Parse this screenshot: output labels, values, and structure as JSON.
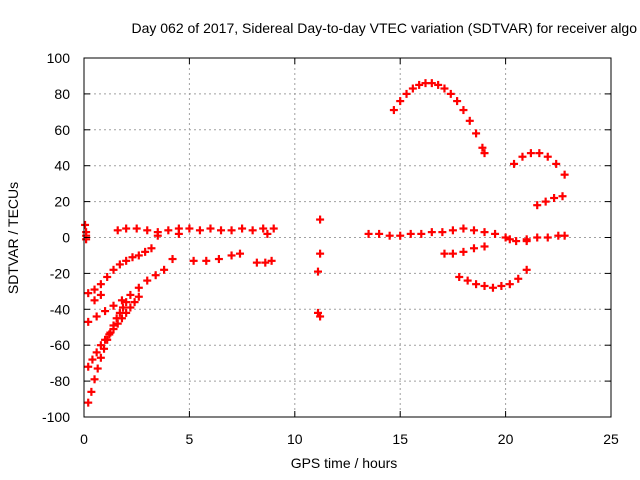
{
  "chart_data": {
    "type": "scatter",
    "title": "Day 062 of 2017, Sidereal Day-to-day VTEC variation (SDTVAR) for receiver algo",
    "xlabel": "GPS time / hours",
    "ylabel": "SDTVAR / TECUs",
    "xlim": [
      0,
      25
    ],
    "ylim": [
      -100,
      100
    ],
    "xticks": [
      "0",
      "5",
      "10",
      "15",
      "20",
      "25"
    ],
    "yticks": [
      "-100",
      "-80",
      "-60",
      "-40",
      "-20",
      "0",
      "20",
      "40",
      "60",
      "80",
      "100"
    ],
    "grid": true,
    "legend": "none",
    "marker": "plus",
    "colors": {
      "points": "#ff0000",
      "axes": "#000000",
      "grid": "#a0a0a0"
    },
    "series": [
      {
        "values": [
          [
            0.05,
            7
          ],
          [
            0.1,
            3
          ],
          [
            0.1,
            1
          ],
          [
            0.1,
            -1
          ],
          [
            0.2,
            -31
          ],
          [
            0.5,
            -29
          ],
          [
            0.8,
            -26
          ],
          [
            1.1,
            -22
          ],
          [
            1.4,
            -18
          ],
          [
            1.7,
            -15
          ],
          [
            2.0,
            -13
          ],
          [
            2.3,
            -11
          ],
          [
            2.6,
            -10
          ],
          [
            2.9,
            -8
          ],
          [
            3.2,
            -6
          ],
          [
            0.2,
            -47
          ],
          [
            0.6,
            -44
          ],
          [
            1.0,
            -41
          ],
          [
            1.4,
            -38
          ],
          [
            1.8,
            -35
          ],
          [
            2.2,
            -32
          ],
          [
            2.6,
            -28
          ],
          [
            3.0,
            -24
          ],
          [
            3.4,
            -21
          ],
          [
            3.8,
            -18
          ],
          [
            4.2,
            -12
          ],
          [
            0.2,
            -72
          ],
          [
            0.4,
            -68
          ],
          [
            0.6,
            -64
          ],
          [
            0.8,
            -60
          ],
          [
            1.0,
            -57
          ],
          [
            1.2,
            -54
          ],
          [
            1.4,
            -51
          ],
          [
            1.6,
            -48
          ],
          [
            1.8,
            -45
          ],
          [
            2.0,
            -42
          ],
          [
            2.2,
            -39
          ],
          [
            2.4,
            -36
          ],
          [
            2.6,
            -33
          ],
          [
            0.2,
            -92
          ],
          [
            0.35,
            -86
          ],
          [
            0.5,
            -79
          ],
          [
            0.65,
            -73
          ],
          [
            0.8,
            -67
          ],
          [
            0.95,
            -62
          ],
          [
            1.1,
            -57
          ],
          [
            1.25,
            -53
          ],
          [
            1.4,
            -49
          ],
          [
            1.55,
            -45
          ],
          [
            1.7,
            -42
          ],
          [
            1.85,
            -39
          ],
          [
            2.0,
            -36
          ],
          [
            0.5,
            -35
          ],
          [
            0.8,
            -32
          ],
          [
            1.6,
            4
          ],
          [
            2.0,
            5
          ],
          [
            2.5,
            5
          ],
          [
            3.0,
            4
          ],
          [
            3.5,
            3
          ],
          [
            4.0,
            4
          ],
          [
            4.5,
            5
          ],
          [
            5.0,
            5
          ],
          [
            5.5,
            4
          ],
          [
            6.0,
            5
          ],
          [
            6.5,
            4
          ],
          [
            7.0,
            4
          ],
          [
            7.5,
            5
          ],
          [
            8.0,
            4
          ],
          [
            8.5,
            5
          ],
          [
            9.0,
            5
          ],
          [
            3.5,
            1
          ],
          [
            4.5,
            2
          ],
          [
            8.7,
            2
          ],
          [
            5.2,
            -13
          ],
          [
            5.8,
            -13
          ],
          [
            6.4,
            -12
          ],
          [
            7.0,
            -10
          ],
          [
            7.4,
            -9
          ],
          [
            8.2,
            -14
          ],
          [
            8.6,
            -14
          ],
          [
            8.9,
            -13
          ],
          [
            11.2,
            10
          ],
          [
            11.2,
            -9
          ],
          [
            11.1,
            -19
          ],
          [
            11.1,
            -42
          ],
          [
            11.2,
            -44
          ],
          [
            13.5,
            2
          ],
          [
            14.0,
            2
          ],
          [
            14.5,
            1
          ],
          [
            15.0,
            1
          ],
          [
            15.5,
            2
          ],
          [
            16.0,
            2
          ],
          [
            16.5,
            3
          ],
          [
            17.0,
            3
          ],
          [
            17.5,
            4
          ],
          [
            18.0,
            5
          ],
          [
            18.5,
            4
          ],
          [
            19.0,
            3
          ],
          [
            19.5,
            2
          ],
          [
            20.0,
            0
          ],
          [
            20.5,
            -2
          ],
          [
            21.0,
            -1
          ],
          [
            21.5,
            0
          ],
          [
            22.0,
            0
          ],
          [
            22.5,
            1
          ],
          [
            22.8,
            1
          ],
          [
            14.7,
            71
          ],
          [
            15.0,
            76
          ],
          [
            15.3,
            80
          ],
          [
            15.6,
            83
          ],
          [
            15.9,
            85
          ],
          [
            16.2,
            86
          ],
          [
            16.5,
            86
          ],
          [
            16.8,
            85
          ],
          [
            17.1,
            83
          ],
          [
            17.4,
            80
          ],
          [
            17.7,
            76
          ],
          [
            18.0,
            71
          ],
          [
            18.3,
            65
          ],
          [
            18.6,
            58
          ],
          [
            18.9,
            50
          ],
          [
            19.0,
            47
          ],
          [
            17.1,
            -9
          ],
          [
            17.5,
            -9
          ],
          [
            18.0,
            -8
          ],
          [
            18.5,
            -6
          ],
          [
            19.0,
            -5
          ],
          [
            17.8,
            -22
          ],
          [
            18.2,
            -24
          ],
          [
            18.6,
            -26
          ],
          [
            19.0,
            -27
          ],
          [
            19.4,
            -28
          ],
          [
            19.8,
            -27
          ],
          [
            20.2,
            -26
          ],
          [
            20.6,
            -23
          ],
          [
            21.0,
            -18
          ],
          [
            20.4,
            41
          ],
          [
            20.8,
            45
          ],
          [
            21.2,
            47
          ],
          [
            21.6,
            47
          ],
          [
            22.0,
            45
          ],
          [
            22.4,
            41
          ],
          [
            22.8,
            35
          ],
          [
            21.5,
            18
          ],
          [
            21.9,
            20
          ],
          [
            22.3,
            22
          ],
          [
            22.7,
            23
          ],
          [
            20.2,
            -1
          ],
          [
            21.0,
            -2
          ]
        ]
      }
    ]
  }
}
